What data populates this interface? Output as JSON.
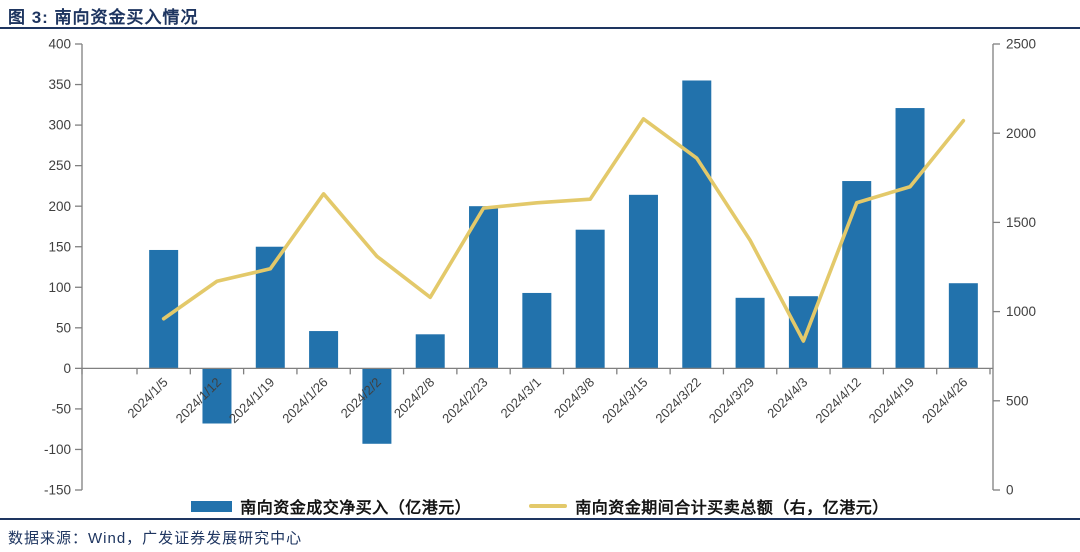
{
  "page": {
    "title": "图 3: 南向资金买入情况",
    "source": "数据来源：Wind，广发证券发展研究中心"
  },
  "legend": {
    "bar_label": "南向资金成交净买入（亿港元）",
    "line_label": "南向资金期间合计买卖总额（右，亿港元）"
  },
  "colors": {
    "bar": "#2272AC",
    "line": "#E3C96A",
    "navy": "#1E3560",
    "axis_text": "#404040",
    "axis_line": "#808080"
  },
  "chart_data": {
    "type": "bar",
    "subtype": "bar+line dual axis",
    "title": "图 3: 南向资金买入情况",
    "categories": [
      "2024/1/5",
      "2024/1/12",
      "2024/1/19",
      "2024/1/26",
      "2024/2/2",
      "2024/2/8",
      "2024/2/23",
      "2024/3/1",
      "2024/3/8",
      "2024/3/15",
      "2024/3/22",
      "2024/3/29",
      "2024/4/3",
      "2024/4/12",
      "2024/4/19",
      "2024/4/26"
    ],
    "series": [
      {
        "name": "南向资金成交净买入（亿港元）",
        "type": "bar",
        "axis": "left",
        "values": [
          146,
          -68,
          150,
          46,
          -93,
          42,
          200,
          93,
          171,
          214,
          355,
          87,
          89,
          231,
          321,
          105
        ]
      },
      {
        "name": "南向资金期间合计买卖总额（右，亿港元）",
        "type": "line",
        "axis": "right",
        "values": [
          960,
          1170,
          1240,
          1660,
          1310,
          1080,
          1580,
          1610,
          1630,
          2080,
          1860,
          1400,
          835,
          1610,
          1700,
          2070
        ]
      }
    ],
    "left_axis": {
      "min": -150,
      "max": 400,
      "ticks": [
        "400",
        "350",
        "300",
        "250",
        "200",
        "150",
        "100",
        "50",
        "0",
        "-50",
        "-100",
        "-150"
      ]
    },
    "right_axis": {
      "min": 0,
      "max": 2500,
      "ticks": [
        "2500",
        "2000",
        "1500",
        "1000",
        "500",
        "0"
      ]
    },
    "grid": false,
    "legend_position": "bottom"
  }
}
